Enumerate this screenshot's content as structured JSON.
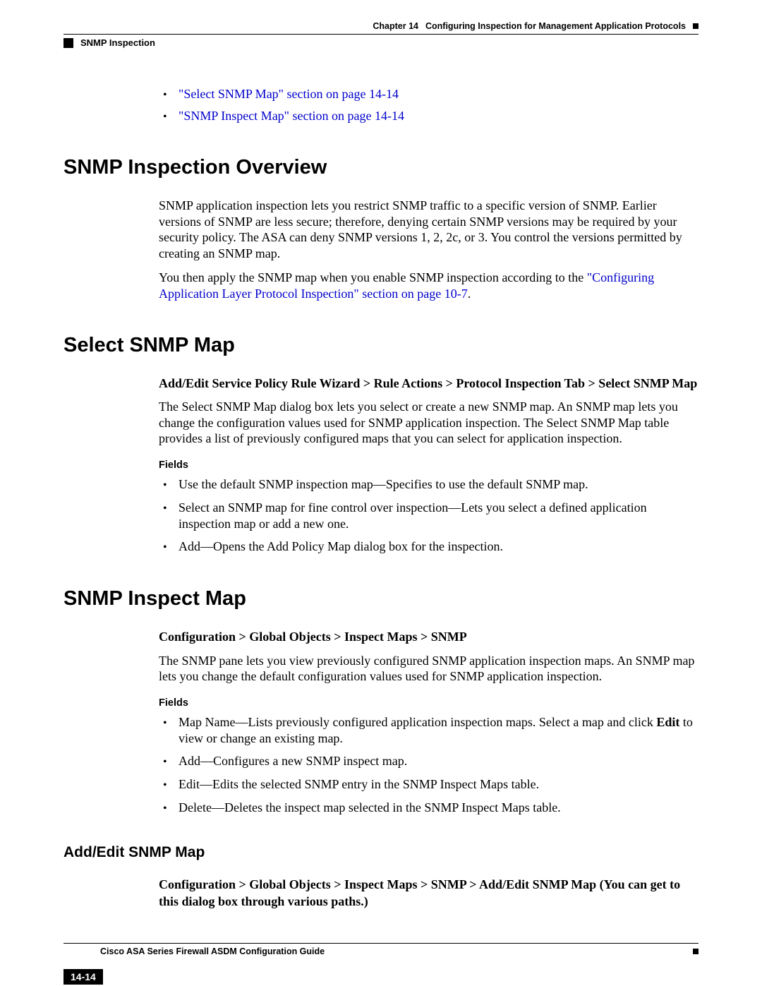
{
  "header": {
    "chapter": "Chapter 14",
    "chapter_title": "Configuring Inspection for Management Application Protocols",
    "section_running": "SNMP Inspection"
  },
  "toc": [
    {
      "text": "\"Select SNMP Map\" section on page 14-14"
    },
    {
      "text": "\"SNMP Inspect Map\" section on page 14-14"
    }
  ],
  "sections": {
    "overview": {
      "heading": "SNMP Inspection Overview",
      "p1": "SNMP application inspection lets you restrict SNMP traffic to a specific version of SNMP. Earlier versions of SNMP are less secure; therefore, denying certain SNMP versions may be required by your security policy. The ASA can deny SNMP versions 1, 2, 2c, or 3. You control the versions permitted by creating an SNMP map.",
      "p2_pre": "You then apply the SNMP map when you enable SNMP inspection according to the ",
      "p2_link": "\"Configuring Application Layer Protocol Inspection\" section on page 10-7",
      "p2_post": "."
    },
    "select_map": {
      "heading": "Select SNMP Map",
      "path": "Add/Edit Service Policy Rule Wizard > Rule Actions > Protocol Inspection Tab > Select SNMP Map",
      "p1": "The Select SNMP Map dialog box lets you select or create a new SNMP map. An SNMP map lets you change the configuration values used for SNMP application inspection. The Select SNMP Map table provides a list of previously configured maps that you can select for application inspection.",
      "fields_label": "Fields",
      "fields": [
        "Use the default SNMP inspection map—Specifies to use the default SNMP map.",
        "Select an SNMP map for fine control over inspection—Lets you select a defined application inspection map or add a new one.",
        "Add—Opens the Add Policy Map dialog box for the inspection."
      ]
    },
    "inspect_map": {
      "heading": "SNMP Inspect Map",
      "path": "Configuration > Global Objects > Inspect Maps > SNMP",
      "p1": "The SNMP pane lets you view previously configured SNMP application inspection maps. An SNMP map lets you change the default configuration values used for SNMP application inspection.",
      "fields_label": "Fields",
      "fields": [
        {
          "pre": "Map Name—Lists previously configured application inspection maps. Select a map and click ",
          "bold": "Edit",
          "post": " to view or change an existing map."
        },
        {
          "pre": "Add—Configures a new SNMP inspect map.",
          "bold": "",
          "post": ""
        },
        {
          "pre": "Edit—Edits the selected SNMP entry in the SNMP Inspect Maps table.",
          "bold": "",
          "post": ""
        },
        {
          "pre": "Delete—Deletes the inspect map selected in the SNMP Inspect Maps table.",
          "bold": "",
          "post": ""
        }
      ]
    },
    "add_edit": {
      "heading": "Add/Edit SNMP Map",
      "path": "Configuration > Global Objects > Inspect Maps > SNMP > Add/Edit SNMP Map (You can get to this dialog box through various paths.)"
    }
  },
  "footer": {
    "guide": "Cisco ASA Series Firewall ASDM Configuration Guide",
    "page": "14-14"
  },
  "colors": {
    "link": "#0000cc",
    "text": "#000000",
    "background": "#ffffff"
  }
}
